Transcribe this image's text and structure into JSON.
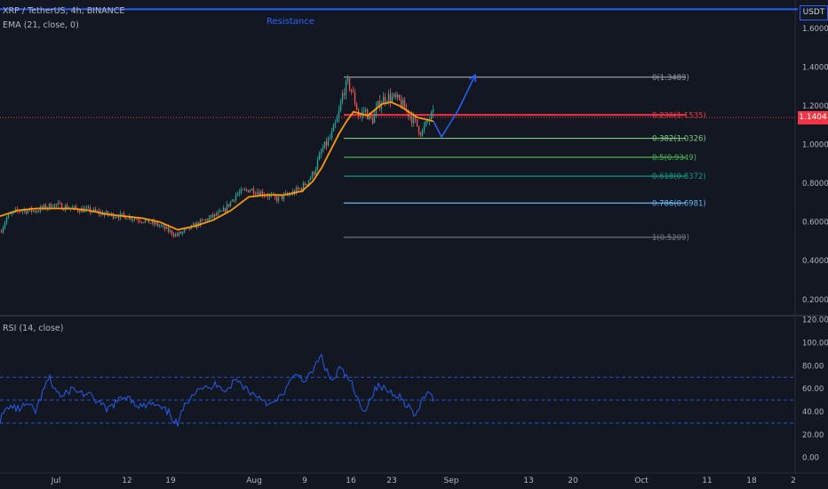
{
  "header": {
    "symbol_line": "XRP / TetherUS, 4h, BINANCE",
    "ema_label": "EMA (21, close, 0)",
    "rsi_label": "RSI (14, close)",
    "currency_button": "USDT",
    "last_price": "1.1404"
  },
  "colors": {
    "background": "#131722",
    "resistance": "#2962ff",
    "ema": "#ff9800",
    "rsi": "#2962ff",
    "price_tag": "#f23645",
    "candle_up": "#26a69a",
    "candle_down": "#ef5350"
  },
  "chart_data": [
    {
      "type": "candlestick",
      "name": "XRP / TetherUS, 4h, BINANCE",
      "x": [
        "Jul",
        "12",
        "19",
        "Aug",
        "9",
        "16",
        "23",
        "Sep",
        "13",
        "20",
        "Oct",
        "11",
        "18",
        "2"
      ],
      "y_ticks": [
        "1.6000",
        "1.4000",
        "1.2000",
        "1.0000",
        "0.8000",
        "0.6000",
        "0.4000",
        "0.2000"
      ],
      "ylim": [
        0.13,
        1.72
      ],
      "last_price": 1.1404,
      "price_path": [
        [
          0,
          0.55
        ],
        [
          8,
          0.63
        ],
        [
          20,
          0.66
        ],
        [
          40,
          0.66
        ],
        [
          60,
          0.69
        ],
        [
          80,
          0.67
        ],
        [
          100,
          0.66
        ],
        [
          120,
          0.64
        ],
        [
          140,
          0.63
        ],
        [
          160,
          0.61
        ],
        [
          180,
          0.58
        ],
        [
          198,
          0.53
        ],
        [
          210,
          0.56
        ],
        [
          230,
          0.61
        ],
        [
          250,
          0.65
        ],
        [
          265,
          0.74
        ],
        [
          280,
          0.77
        ],
        [
          295,
          0.75
        ],
        [
          310,
          0.72
        ],
        [
          325,
          0.74
        ],
        [
          340,
          0.78
        ],
        [
          352,
          0.85
        ],
        [
          362,
          0.97
        ],
        [
          372,
          1.04
        ],
        [
          380,
          1.14
        ],
        [
          386,
          1.28
        ],
        [
          392,
          1.32
        ],
        [
          398,
          1.24
        ],
        [
          404,
          1.14
        ],
        [
          410,
          1.18
        ],
        [
          418,
          1.12
        ],
        [
          426,
          1.21
        ],
        [
          434,
          1.25
        ],
        [
          442,
          1.24
        ],
        [
          450,
          1.22
        ],
        [
          458,
          1.17
        ],
        [
          466,
          1.12
        ],
        [
          474,
          1.06
        ],
        [
          482,
          1.13
        ],
        [
          488,
          1.16
        ]
      ],
      "ema_path": [
        [
          0,
          0.63
        ],
        [
          20,
          0.66
        ],
        [
          40,
          0.67
        ],
        [
          60,
          0.67
        ],
        [
          80,
          0.67
        ],
        [
          100,
          0.66
        ],
        [
          120,
          0.64
        ],
        [
          140,
          0.63
        ],
        [
          160,
          0.62
        ],
        [
          180,
          0.6
        ],
        [
          200,
          0.56
        ],
        [
          220,
          0.58
        ],
        [
          240,
          0.61
        ],
        [
          260,
          0.66
        ],
        [
          280,
          0.73
        ],
        [
          300,
          0.74
        ],
        [
          320,
          0.74
        ],
        [
          340,
          0.76
        ],
        [
          352,
          0.81
        ],
        [
          362,
          0.88
        ],
        [
          372,
          0.97
        ],
        [
          382,
          1.06
        ],
        [
          390,
          1.12
        ],
        [
          398,
          1.17
        ],
        [
          406,
          1.16
        ],
        [
          414,
          1.15
        ],
        [
          422,
          1.18
        ],
        [
          430,
          1.21
        ],
        [
          440,
          1.22
        ],
        [
          450,
          1.2
        ],
        [
          460,
          1.17
        ],
        [
          470,
          1.14
        ],
        [
          480,
          1.13
        ],
        [
          488,
          1.12
        ]
      ],
      "projection": [
        [
          488,
          1.12
        ],
        [
          497,
          1.04
        ],
        [
          516,
          1.18
        ],
        [
          535,
          1.36
        ]
      ],
      "resistance": {
        "label": "Resistance",
        "value": 1.7
      },
      "fibonacci": [
        {
          "label": "0(1.3489)",
          "value": 1.3489,
          "color": "#9598a1"
        },
        {
          "label": "0.236(1.1535)",
          "value": 1.1535,
          "color": "#f23645"
        },
        {
          "label": "0.382(1.0326)",
          "value": 1.0326,
          "color": "#81c784"
        },
        {
          "label": "0.5(0.9349)",
          "value": 0.9349,
          "color": "#4caf50"
        },
        {
          "label": "0.618(0.8372)",
          "value": 0.8372,
          "color": "#089981"
        },
        {
          "label": "0.786(0.6981)",
          "value": 0.6981,
          "color": "#64b5f6"
        },
        {
          "label": "1(0.5209)",
          "value": 0.5209,
          "color": "#787b86"
        }
      ]
    },
    {
      "type": "line",
      "name": "RSI (14, close)",
      "y_ticks": [
        "120.00",
        "100.00",
        "80.00",
        "60.00",
        "40.00",
        "20.00",
        "0.00"
      ],
      "ylim": [
        -8,
        122
      ],
      "bands": [
        70,
        50,
        30
      ],
      "path": [
        [
          0,
          33
        ],
        [
          10,
          45
        ],
        [
          20,
          42
        ],
        [
          30,
          46
        ],
        [
          40,
          40
        ],
        [
          50,
          60
        ],
        [
          55,
          70
        ],
        [
          60,
          62
        ],
        [
          70,
          52
        ],
        [
          80,
          60
        ],
        [
          90,
          57
        ],
        [
          100,
          54
        ],
        [
          110,
          49
        ],
        [
          120,
          41
        ],
        [
          130,
          48
        ],
        [
          140,
          52
        ],
        [
          145,
          55
        ],
        [
          150,
          48
        ],
        [
          160,
          44
        ],
        [
          170,
          47
        ],
        [
          180,
          43
        ],
        [
          190,
          39
        ],
        [
          200,
          28
        ],
        [
          205,
          40
        ],
        [
          215,
          55
        ],
        [
          225,
          62
        ],
        [
          235,
          59
        ],
        [
          245,
          65
        ],
        [
          255,
          58
        ],
        [
          265,
          68
        ],
        [
          275,
          62
        ],
        [
          285,
          55
        ],
        [
          295,
          52
        ],
        [
          305,
          45
        ],
        [
          315,
          52
        ],
        [
          325,
          64
        ],
        [
          335,
          73
        ],
        [
          345,
          66
        ],
        [
          355,
          80
        ],
        [
          362,
          88
        ],
        [
          368,
          74
        ],
        [
          375,
          66
        ],
        [
          382,
          78
        ],
        [
          388,
          72
        ],
        [
          395,
          66
        ],
        [
          400,
          54
        ],
        [
          405,
          46
        ],
        [
          412,
          42
        ],
        [
          418,
          54
        ],
        [
          425,
          62
        ],
        [
          432,
          60
        ],
        [
          440,
          57
        ],
        [
          448,
          55
        ],
        [
          455,
          48
        ],
        [
          462,
          43
        ],
        [
          468,
          34
        ],
        [
          474,
          48
        ],
        [
          480,
          57
        ],
        [
          488,
          50
        ]
      ]
    }
  ]
}
